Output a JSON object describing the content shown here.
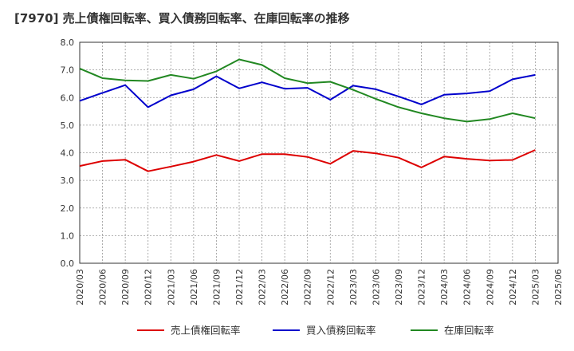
{
  "chart_data": {
    "type": "line",
    "title": "[7970]  売上債権回転率、買入債務回転率、在庫回転率の推移",
    "xlabel": "",
    "ylabel": "",
    "ylim": [
      0,
      8
    ],
    "yticks": [
      "0.0",
      "1.0",
      "2.0",
      "3.0",
      "4.0",
      "5.0",
      "6.0",
      "7.0",
      "8.0"
    ],
    "grid": true,
    "legend_position": "bottom",
    "categories": [
      "2020/03",
      "2020/06",
      "2020/09",
      "2020/12",
      "2021/03",
      "2021/06",
      "2021/09",
      "2021/12",
      "2022/03",
      "2022/06",
      "2022/09",
      "2022/12",
      "2023/03",
      "2023/06",
      "2023/09",
      "2023/12",
      "2024/03",
      "2024/06",
      "2024/09",
      "2024/12",
      "2025/03",
      "2025/06"
    ],
    "series": [
      {
        "name": "売上債権回転率",
        "color": "#dd0000",
        "values": [
          3.52,
          3.7,
          3.75,
          3.33,
          3.5,
          3.68,
          3.92,
          3.7,
          3.95,
          3.95,
          3.85,
          3.6,
          4.07,
          3.98,
          3.82,
          3.47,
          3.86,
          3.78,
          3.72,
          3.74,
          4.1,
          null
        ]
      },
      {
        "name": "買入債務回転率",
        "color": "#0000cc",
        "values": [
          5.88,
          6.17,
          6.45,
          5.65,
          6.08,
          6.3,
          6.77,
          6.33,
          6.55,
          6.32,
          6.35,
          5.92,
          6.43,
          6.3,
          6.04,
          5.75,
          6.1,
          6.15,
          6.23,
          6.66,
          6.82,
          null
        ]
      },
      {
        "name": "在庫回転率",
        "color": "#228822",
        "values": [
          7.05,
          6.7,
          6.62,
          6.6,
          6.82,
          6.68,
          6.95,
          7.38,
          7.18,
          6.7,
          6.52,
          6.57,
          6.28,
          5.95,
          5.65,
          5.43,
          5.25,
          5.13,
          5.22,
          5.43,
          5.25,
          null
        ]
      }
    ]
  }
}
